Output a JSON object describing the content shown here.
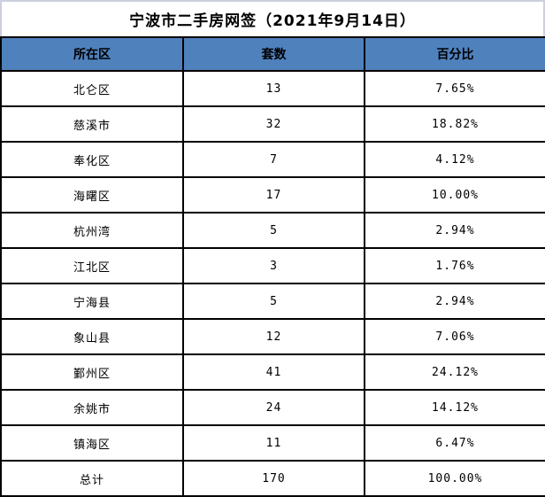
{
  "title": "宁波市二手房网签（2021年9月14日）",
  "colors": {
    "header_bg": "#4F81BD",
    "grid_border": "#000000",
    "title_border": "#ccd0de"
  },
  "chart_data": {
    "type": "table",
    "title": "宁波市二手房网签（2021年9月14日）",
    "columns": [
      "所在区",
      "套数",
      "百分比"
    ],
    "rows": [
      {
        "district": "北仑区",
        "units": "13",
        "percent": "7.65%"
      },
      {
        "district": "慈溪市",
        "units": "32",
        "percent": "18.82%"
      },
      {
        "district": "奉化区",
        "units": "7",
        "percent": "4.12%"
      },
      {
        "district": "海曙区",
        "units": "17",
        "percent": "10.00%"
      },
      {
        "district": "杭州湾",
        "units": "5",
        "percent": "2.94%"
      },
      {
        "district": "江北区",
        "units": "3",
        "percent": "1.76%"
      },
      {
        "district": "宁海县",
        "units": "5",
        "percent": "2.94%"
      },
      {
        "district": "象山县",
        "units": "12",
        "percent": "7.06%"
      },
      {
        "district": "鄞州区",
        "units": "41",
        "percent": "24.12%"
      },
      {
        "district": "余姚市",
        "units": "24",
        "percent": "14.12%"
      },
      {
        "district": "镇海区",
        "units": "11",
        "percent": "6.47%"
      },
      {
        "district": "总计",
        "units": "170",
        "percent": "100.00%"
      }
    ]
  }
}
